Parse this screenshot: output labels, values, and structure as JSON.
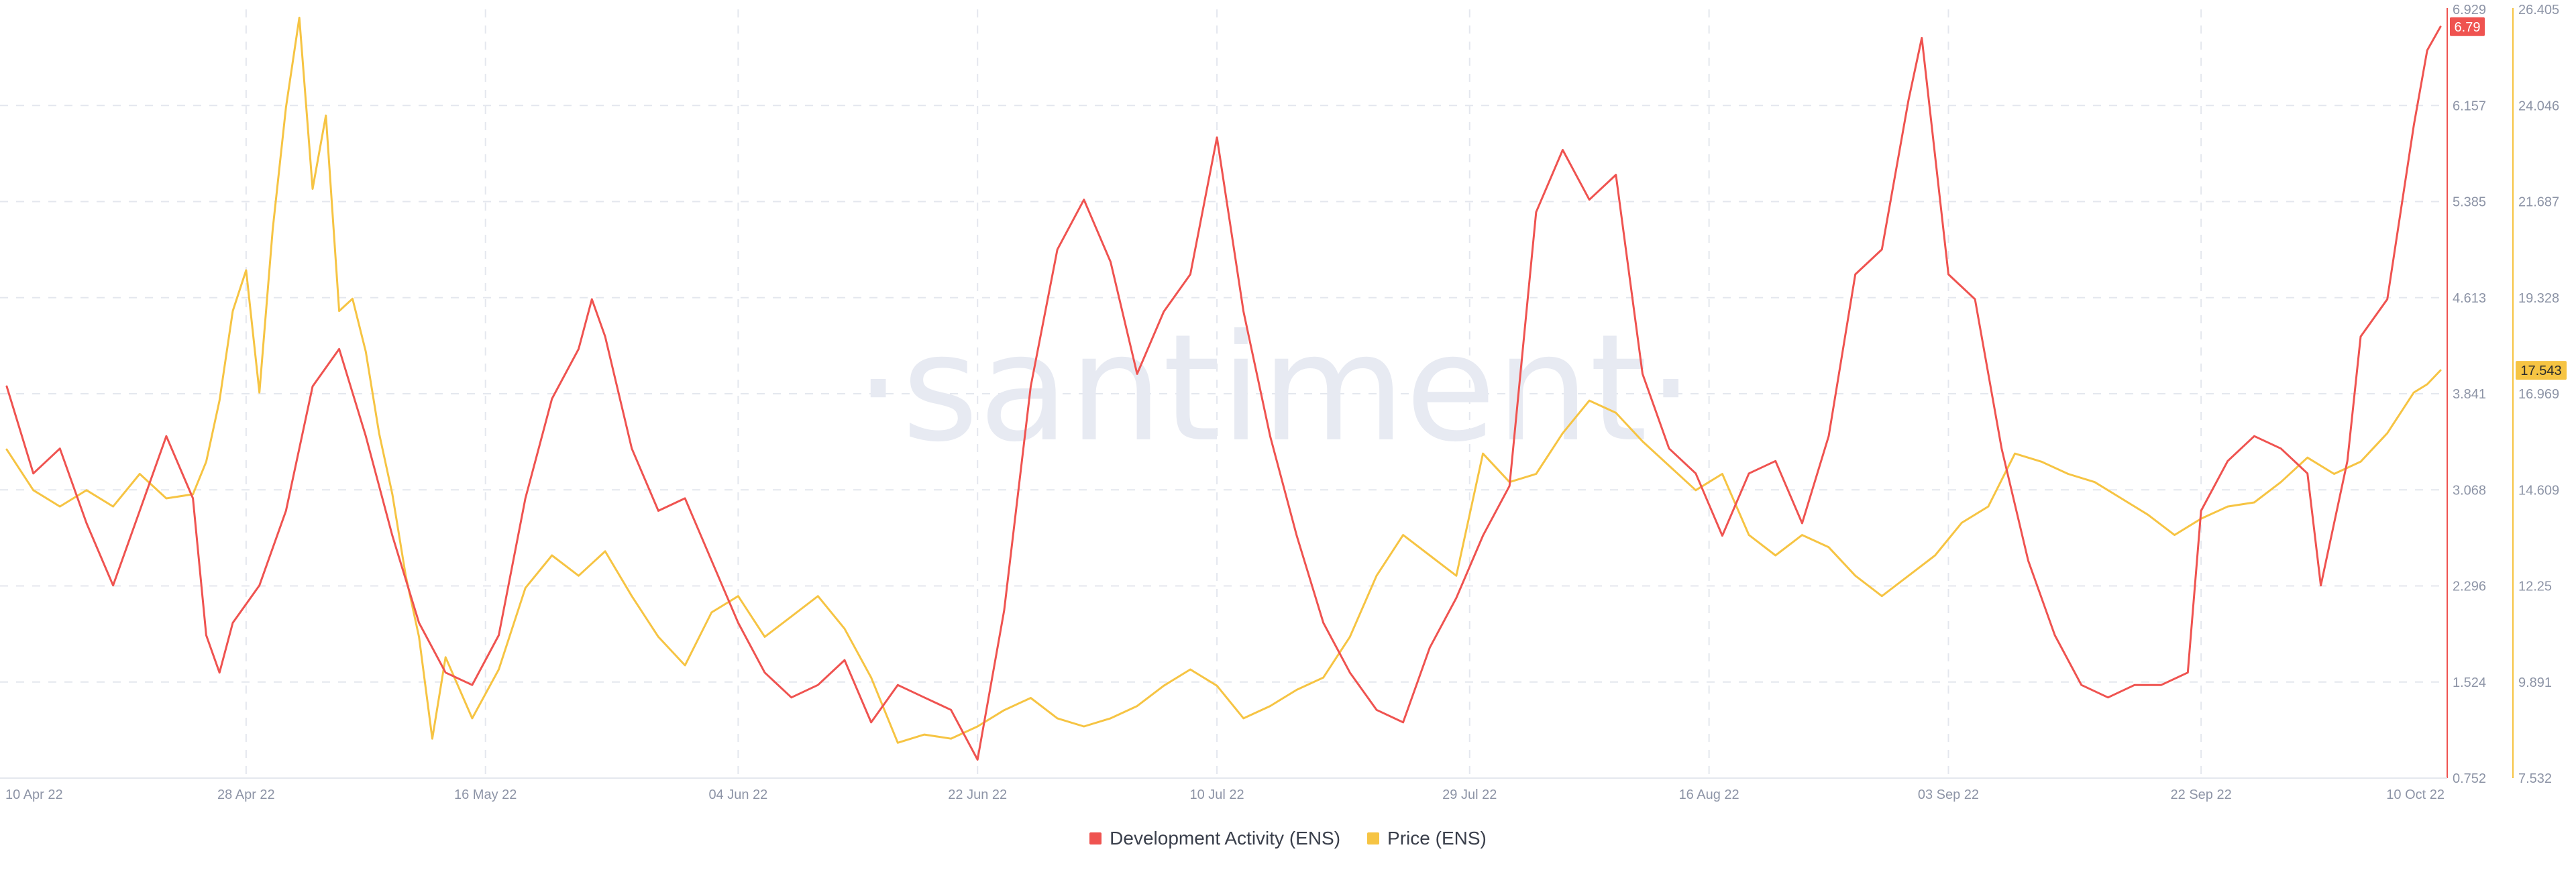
{
  "watermark": "·santiment·",
  "legend": [
    {
      "label": "Development Activity (ENS)",
      "color": "#ef5350"
    },
    {
      "label": "Price (ENS)",
      "color": "#f6c443"
    }
  ],
  "chart_data": {
    "type": "line",
    "x_ticks": [
      "10 Apr 22",
      "28 Apr 22",
      "16 May 22",
      "04 Jun 22",
      "22 Jun 22",
      "10 Jul 22",
      "29 Jul 22",
      "16 Aug 22",
      "03 Sep 22",
      "22 Sep 22",
      "10 Oct 22"
    ],
    "grid": true,
    "legend_position": "bottom-center",
    "left_axis": {
      "series": "Development Activity (ENS)",
      "ticks": [
        "6.929",
        "6.157",
        "5.385",
        "4.613",
        "3.841",
        "3.068",
        "2.296",
        "1.524",
        "0.752"
      ],
      "ylim": [
        0.752,
        6.929
      ],
      "current_value_label": "6.79",
      "current_value": 6.79,
      "color": "#ef5350"
    },
    "right_axis": {
      "series": "Price (ENS)",
      "ticks": [
        "26.405",
        "24.046",
        "21.687",
        "19.328",
        "16.969",
        "14.609",
        "12.25",
        "9.891",
        "7.532"
      ],
      "ylim": [
        7.532,
        26.405
      ],
      "current_value_label": "17.543",
      "current_value": 17.543,
      "color": "#f6c443"
    },
    "series": [
      {
        "name": "Development Activity (ENS)",
        "axis": "left",
        "color": "#ef5350",
        "points": [
          [
            "10 Apr 22",
            3.9
          ],
          [
            "12 Apr 22",
            3.2
          ],
          [
            "14 Apr 22",
            3.4
          ],
          [
            "16 Apr 22",
            2.8
          ],
          [
            "18 Apr 22",
            2.3
          ],
          [
            "20 Apr 22",
            2.9
          ],
          [
            "22 Apr 22",
            3.5
          ],
          [
            "24 Apr 22",
            3.0
          ],
          [
            "25 Apr 22",
            1.9
          ],
          [
            "26 Apr 22",
            1.6
          ],
          [
            "27 Apr 22",
            2.0
          ],
          [
            "29 Apr 22",
            2.3
          ],
          [
            "01 May 22",
            2.9
          ],
          [
            "03 May 22",
            3.9
          ],
          [
            "05 May 22",
            4.2
          ],
          [
            "07 May 22",
            3.5
          ],
          [
            "09 May 22",
            2.7
          ],
          [
            "11 May 22",
            2.0
          ],
          [
            "13 May 22",
            1.6
          ],
          [
            "15 May 22",
            1.5
          ],
          [
            "17 May 22",
            1.9
          ],
          [
            "19 May 22",
            3.0
          ],
          [
            "21 May 22",
            3.8
          ],
          [
            "23 May 22",
            4.2
          ],
          [
            "24 May 22",
            4.6
          ],
          [
            "25 May 22",
            4.3
          ],
          [
            "27 May 22",
            3.4
          ],
          [
            "29 May 22",
            2.9
          ],
          [
            "31 May 22",
            3.0
          ],
          [
            "02 Jun 22",
            2.5
          ],
          [
            "04 Jun 22",
            2.0
          ],
          [
            "06 Jun 22",
            1.6
          ],
          [
            "08 Jun 22",
            1.4
          ],
          [
            "10 Jun 22",
            1.5
          ],
          [
            "12 Jun 22",
            1.7
          ],
          [
            "14 Jun 22",
            1.2
          ],
          [
            "16 Jun 22",
            1.5
          ],
          [
            "18 Jun 22",
            1.4
          ],
          [
            "20 Jun 22",
            1.3
          ],
          [
            "22 Jun 22",
            0.9
          ],
          [
            "24 Jun 22",
            2.1
          ],
          [
            "26 Jun 22",
            3.9
          ],
          [
            "28 Jun 22",
            5.0
          ],
          [
            "30 Jun 22",
            5.4
          ],
          [
            "02 Jul 22",
            4.9
          ],
          [
            "04 Jul 22",
            4.0
          ],
          [
            "06 Jul 22",
            4.5
          ],
          [
            "08 Jul 22",
            4.8
          ],
          [
            "10 Jul 22",
            5.9
          ],
          [
            "12 Jul 22",
            4.5
          ],
          [
            "14 Jul 22",
            3.5
          ],
          [
            "16 Jul 22",
            2.7
          ],
          [
            "18 Jul 22",
            2.0
          ],
          [
            "20 Jul 22",
            1.6
          ],
          [
            "22 Jul 22",
            1.3
          ],
          [
            "24 Jul 22",
            1.2
          ],
          [
            "26 Jul 22",
            1.8
          ],
          [
            "28 Jul 22",
            2.2
          ],
          [
            "30 Jul 22",
            2.7
          ],
          [
            "01 Aug 22",
            3.1
          ],
          [
            "03 Aug 22",
            5.3
          ],
          [
            "05 Aug 22",
            5.8
          ],
          [
            "07 Aug 22",
            5.4
          ],
          [
            "09 Aug 22",
            5.6
          ],
          [
            "11 Aug 22",
            4.0
          ],
          [
            "13 Aug 22",
            3.4
          ],
          [
            "15 Aug 22",
            3.2
          ],
          [
            "17 Aug 22",
            2.7
          ],
          [
            "19 Aug 22",
            3.2
          ],
          [
            "21 Aug 22",
            3.3
          ],
          [
            "23 Aug 22",
            2.8
          ],
          [
            "25 Aug 22",
            3.5
          ],
          [
            "27 Aug 22",
            4.8
          ],
          [
            "29 Aug 22",
            5.0
          ],
          [
            "31 Aug 22",
            6.2
          ],
          [
            "01 Sep 22",
            6.7
          ],
          [
            "03 Sep 22",
            4.8
          ],
          [
            "05 Sep 22",
            4.6
          ],
          [
            "07 Sep 22",
            3.4
          ],
          [
            "09 Sep 22",
            2.5
          ],
          [
            "11 Sep 22",
            1.9
          ],
          [
            "13 Sep 22",
            1.5
          ],
          [
            "15 Sep 22",
            1.4
          ],
          [
            "17 Sep 22",
            1.5
          ],
          [
            "19 Sep 22",
            1.5
          ],
          [
            "21 Sep 22",
            1.6
          ],
          [
            "22 Sep 22",
            2.9
          ],
          [
            "24 Sep 22",
            3.3
          ],
          [
            "26 Sep 22",
            3.5
          ],
          [
            "28 Sep 22",
            3.4
          ],
          [
            "30 Sep 22",
            3.2
          ],
          [
            "01 Oct 22",
            2.3
          ],
          [
            "03 Oct 22",
            3.3
          ],
          [
            "04 Oct 22",
            4.3
          ],
          [
            "06 Oct 22",
            4.6
          ],
          [
            "08 Oct 22",
            6.0
          ],
          [
            "09 Oct 22",
            6.6
          ],
          [
            "10 Oct 22",
            6.79
          ]
        ]
      },
      {
        "name": "Price (ENS)",
        "axis": "right",
        "color": "#f6c443",
        "points": [
          [
            "10 Apr 22",
            15.6
          ],
          [
            "12 Apr 22",
            14.6
          ],
          [
            "14 Apr 22",
            14.2
          ],
          [
            "16 Apr 22",
            14.6
          ],
          [
            "18 Apr 22",
            14.2
          ],
          [
            "20 Apr 22",
            15.0
          ],
          [
            "22 Apr 22",
            14.4
          ],
          [
            "24 Apr 22",
            14.5
          ],
          [
            "25 Apr 22",
            15.3
          ],
          [
            "26 Apr 22",
            16.8
          ],
          [
            "27 Apr 22",
            19.0
          ],
          [
            "28 Apr 22",
            20.0
          ],
          [
            "29 Apr 22",
            17.0
          ],
          [
            "30 Apr 22",
            21.0
          ],
          [
            "01 May 22",
            24.0
          ],
          [
            "02 May 22",
            26.2
          ],
          [
            "03 May 22",
            22.0
          ],
          [
            "04 May 22",
            23.8
          ],
          [
            "05 May 22",
            19.0
          ],
          [
            "06 May 22",
            19.3
          ],
          [
            "07 May 22",
            18.0
          ],
          [
            "08 May 22",
            16.0
          ],
          [
            "09 May 22",
            14.5
          ],
          [
            "10 May 22",
            12.5
          ],
          [
            "11 May 22",
            11.0
          ],
          [
            "12 May 22",
            8.5
          ],
          [
            "13 May 22",
            10.5
          ],
          [
            "15 May 22",
            9.0
          ],
          [
            "17 May 22",
            10.2
          ],
          [
            "19 May 22",
            12.2
          ],
          [
            "21 May 22",
            13.0
          ],
          [
            "23 May 22",
            12.5
          ],
          [
            "25 May 22",
            13.1
          ],
          [
            "27 May 22",
            12.0
          ],
          [
            "29 May 22",
            11.0
          ],
          [
            "31 May 22",
            10.3
          ],
          [
            "02 Jun 22",
            11.6
          ],
          [
            "04 Jun 22",
            12.0
          ],
          [
            "06 Jun 22",
            11.0
          ],
          [
            "08 Jun 22",
            11.5
          ],
          [
            "10 Jun 22",
            12.0
          ],
          [
            "12 Jun 22",
            11.2
          ],
          [
            "14 Jun 22",
            10.0
          ],
          [
            "16 Jun 22",
            8.4
          ],
          [
            "18 Jun 22",
            8.6
          ],
          [
            "20 Jun 22",
            8.5
          ],
          [
            "22 Jun 22",
            8.8
          ],
          [
            "24 Jun 22",
            9.2
          ],
          [
            "26 Jun 22",
            9.5
          ],
          [
            "28 Jun 22",
            9.0
          ],
          [
            "30 Jun 22",
            8.8
          ],
          [
            "02 Jul 22",
            9.0
          ],
          [
            "04 Jul 22",
            9.3
          ],
          [
            "06 Jul 22",
            9.8
          ],
          [
            "08 Jul 22",
            10.2
          ],
          [
            "10 Jul 22",
            9.8
          ],
          [
            "12 Jul 22",
            9.0
          ],
          [
            "14 Jul 22",
            9.3
          ],
          [
            "16 Jul 22",
            9.7
          ],
          [
            "18 Jul 22",
            10.0
          ],
          [
            "20 Jul 22",
            11.0
          ],
          [
            "22 Jul 22",
            12.5
          ],
          [
            "24 Jul 22",
            13.5
          ],
          [
            "26 Jul 22",
            13.0
          ],
          [
            "28 Jul 22",
            12.5
          ],
          [
            "30 Jul 22",
            15.5
          ],
          [
            "01 Aug 22",
            14.8
          ],
          [
            "03 Aug 22",
            15.0
          ],
          [
            "05 Aug 22",
            16.0
          ],
          [
            "07 Aug 22",
            16.8
          ],
          [
            "09 Aug 22",
            16.5
          ],
          [
            "11 Aug 22",
            15.8
          ],
          [
            "13 Aug 22",
            15.2
          ],
          [
            "15 Aug 22",
            14.6
          ],
          [
            "17 Aug 22",
            15.0
          ],
          [
            "19 Aug 22",
            13.5
          ],
          [
            "21 Aug 22",
            13.0
          ],
          [
            "23 Aug 22",
            13.5
          ],
          [
            "25 Aug 22",
            13.2
          ],
          [
            "27 Aug 22",
            12.5
          ],
          [
            "29 Aug 22",
            12.0
          ],
          [
            "31 Aug 22",
            12.5
          ],
          [
            "02 Sep 22",
            13.0
          ],
          [
            "04 Sep 22",
            13.8
          ],
          [
            "06 Sep 22",
            14.2
          ],
          [
            "08 Sep 22",
            15.5
          ],
          [
            "10 Sep 22",
            15.3
          ],
          [
            "12 Sep 22",
            15.0
          ],
          [
            "14 Sep 22",
            14.8
          ],
          [
            "16 Sep 22",
            14.4
          ],
          [
            "18 Sep 22",
            14.0
          ],
          [
            "20 Sep 22",
            13.5
          ],
          [
            "22 Sep 22",
            13.9
          ],
          [
            "24 Sep 22",
            14.2
          ],
          [
            "26 Sep 22",
            14.3
          ],
          [
            "28 Sep 22",
            14.8
          ],
          [
            "30 Sep 22",
            15.4
          ],
          [
            "02 Oct 22",
            15.0
          ],
          [
            "04 Oct 22",
            15.3
          ],
          [
            "06 Oct 22",
            16.0
          ],
          [
            "08 Oct 22",
            17.0
          ],
          [
            "09 Oct 22",
            17.2
          ],
          [
            "10 Oct 22",
            17.543
          ]
        ]
      }
    ]
  }
}
